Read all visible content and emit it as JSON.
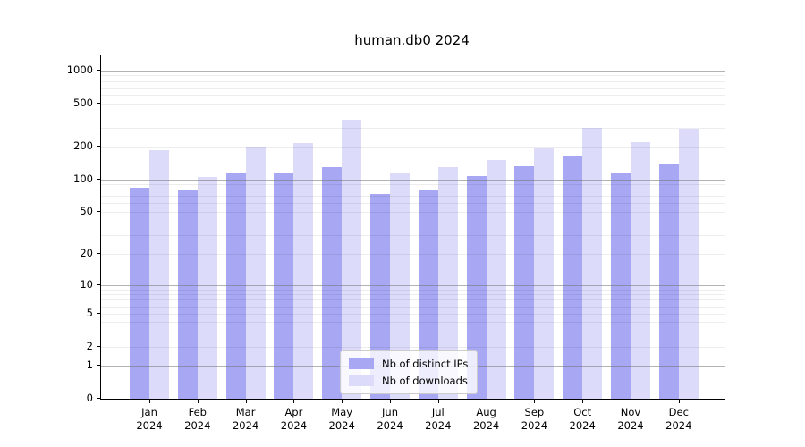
{
  "chart_data": {
    "type": "bar",
    "title": "human.db0 2024",
    "categories": [
      "Jan 2024",
      "Feb 2024",
      "Mar 2024",
      "Apr 2024",
      "May 2024",
      "Jun 2024",
      "Jul 2024",
      "Aug 2024",
      "Sep 2024",
      "Oct 2024",
      "Nov 2024",
      "Dec 2024"
    ],
    "series": [
      {
        "name": "Nb of distinct IPs",
        "color": "#a7a7f3",
        "values": [
          83,
          80,
          116,
          114,
          129,
          73,
          79,
          107,
          133,
          167,
          116,
          139
        ]
      },
      {
        "name": "Nb of downloads",
        "color": "#dcdcfa",
        "values": [
          186,
          105,
          199,
          216,
          353,
          113,
          129,
          151,
          197,
          298,
          219,
          293
        ]
      }
    ],
    "yscale": "log10(1+x)",
    "ylim": [
      0,
      1370
    ],
    "yticks": [
      1000,
      500,
      200,
      100,
      50,
      20,
      10,
      5,
      2,
      1,
      0
    ],
    "major_gridlines": [
      1,
      10,
      100,
      1000
    ],
    "grid": true,
    "legend_position": "lower center",
    "xlabel": "",
    "ylabel": ""
  }
}
